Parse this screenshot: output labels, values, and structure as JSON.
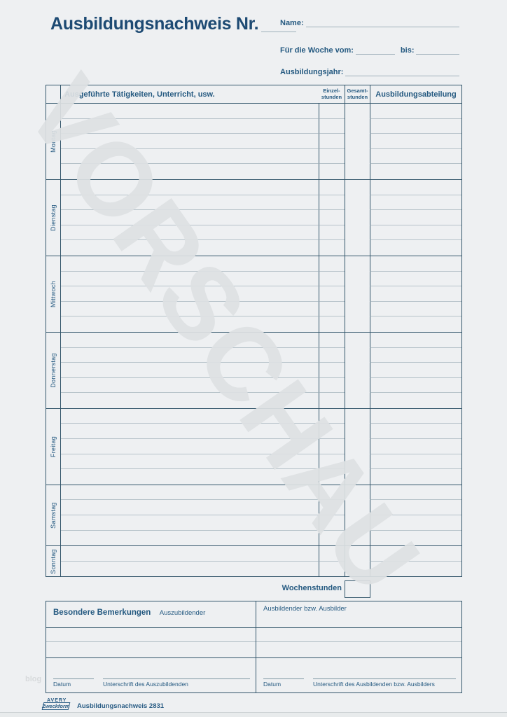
{
  "form": {
    "title": "Ausbildungsnachweis Nr.",
    "name_label": "Name:",
    "week_label": "Für die Woche vom:",
    "week_to_label": "bis:",
    "year_label": "Ausbildungsjahr:"
  },
  "watermark": {
    "text": "VORSCHAU",
    "site_text": "blog"
  },
  "table": {
    "activities_header": "Ausgeführte Tätigkeiten, Unterricht, usw.",
    "single_hours_header": "Einzel-\nstunden",
    "total_hours_header": "Gesamt-\nstunden",
    "department_header": "Ausbildungsabteilung",
    "days": [
      {
        "label": "Montag",
        "lines": 5
      },
      {
        "label": "Dienstag",
        "lines": 5
      },
      {
        "label": "Mittwoch",
        "lines": 5
      },
      {
        "label": "Donnerstag",
        "lines": 5
      },
      {
        "label": "Freitag",
        "lines": 5
      },
      {
        "label": "Samstag",
        "lines": 4
      },
      {
        "label": "Sonntag",
        "lines": 2
      }
    ],
    "week_total_label": "Wochenstunden"
  },
  "remarks": {
    "title": "Besondere Bemerkungen",
    "trainee_label": "Auszubildender",
    "trainer_label": "Ausbildender bzw. Ausbilder",
    "date_label": "Datum",
    "trainee_signature_label": "Unterschrift des Auszubildenden",
    "trainer_date_label": "Datum",
    "trainer_signature_label": "Unterschrift des Ausbildenden bzw. Ausbilders"
  },
  "footer": {
    "brand_name": "AVERY",
    "brand_sub": "Zweckform",
    "product_label": "Ausbildungsnachweis 2831"
  },
  "colors": {
    "ink_blue": "#245980",
    "line_dark": "#33566b",
    "line_light": "#b6c2c9",
    "watermark_gray": "#dde1e3"
  }
}
